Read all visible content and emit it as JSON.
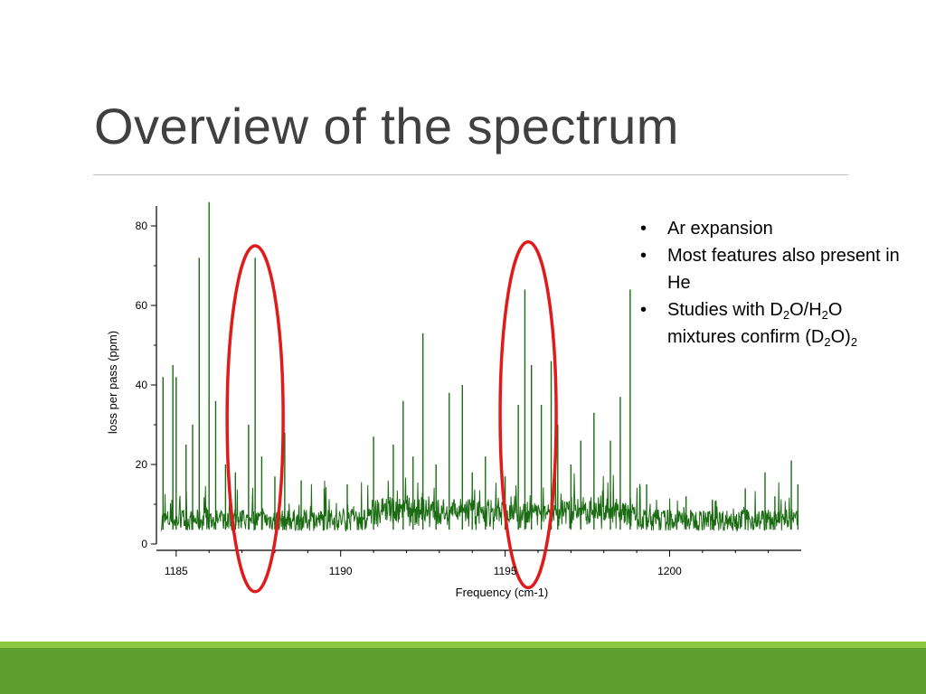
{
  "slide": {
    "title": "Overview of the spectrum"
  },
  "notes": {
    "b1": "Ar expansion",
    "b2": "Most features also present in He",
    "b3_pre": "Studies with D",
    "b3_sub1": "2",
    "b3_mid1": "O/H",
    "b3_sub2": "2",
    "b3_mid2": "O mixtures confirm (D",
    "b3_sub3": "2",
    "b3_mid3": "O)",
    "b3_sub4": "2"
  },
  "chart_data": {
    "type": "line",
    "xlabel": "Frequency (cm-1)",
    "ylabel": "loss per pass (ppm)",
    "xlim": [
      1184.4,
      1204
    ],
    "ylim": [
      0,
      85
    ],
    "x_ticks": [
      "1185",
      "1190",
      "1195",
      "1200"
    ],
    "y_ticks": [
      "0",
      "20",
      "40",
      "60",
      "80"
    ],
    "line_color": "#1a6b12",
    "highlight_color": "#e01b1b",
    "baseline_noise_ppm": 6,
    "peaks": [
      {
        "x": 1184.6,
        "y": 42
      },
      {
        "x": 1184.9,
        "y": 45
      },
      {
        "x": 1185.0,
        "y": 42
      },
      {
        "x": 1185.3,
        "y": 25
      },
      {
        "x": 1185.5,
        "y": 30
      },
      {
        "x": 1185.7,
        "y": 72
      },
      {
        "x": 1186.0,
        "y": 86
      },
      {
        "x": 1186.2,
        "y": 36
      },
      {
        "x": 1186.5,
        "y": 20
      },
      {
        "x": 1186.8,
        "y": 18
      },
      {
        "x": 1187.4,
        "y": 72
      },
      {
        "x": 1187.2,
        "y": 30
      },
      {
        "x": 1187.6,
        "y": 22
      },
      {
        "x": 1188.0,
        "y": 17
      },
      {
        "x": 1188.3,
        "y": 28
      },
      {
        "x": 1188.8,
        "y": 16
      },
      {
        "x": 1189.5,
        "y": 14
      },
      {
        "x": 1190.2,
        "y": 15
      },
      {
        "x": 1191.0,
        "y": 27
      },
      {
        "x": 1191.6,
        "y": 25
      },
      {
        "x": 1191.9,
        "y": 36
      },
      {
        "x": 1192.2,
        "y": 22
      },
      {
        "x": 1192.5,
        "y": 53
      },
      {
        "x": 1192.9,
        "y": 20
      },
      {
        "x": 1193.3,
        "y": 38
      },
      {
        "x": 1193.7,
        "y": 40
      },
      {
        "x": 1194.0,
        "y": 18
      },
      {
        "x": 1194.4,
        "y": 22
      },
      {
        "x": 1195.0,
        "y": 17
      },
      {
        "x": 1195.4,
        "y": 35
      },
      {
        "x": 1195.6,
        "y": 64
      },
      {
        "x": 1195.8,
        "y": 45
      },
      {
        "x": 1196.1,
        "y": 35
      },
      {
        "x": 1196.4,
        "y": 46
      },
      {
        "x": 1196.6,
        "y": 30
      },
      {
        "x": 1197.0,
        "y": 20
      },
      {
        "x": 1197.3,
        "y": 26
      },
      {
        "x": 1197.7,
        "y": 33
      },
      {
        "x": 1198.2,
        "y": 26
      },
      {
        "x": 1198.5,
        "y": 37
      },
      {
        "x": 1198.8,
        "y": 64
      },
      {
        "x": 1199.3,
        "y": 15
      },
      {
        "x": 1200.5,
        "y": 12
      },
      {
        "x": 1201.3,
        "y": 11
      },
      {
        "x": 1202.3,
        "y": 14
      },
      {
        "x": 1202.9,
        "y": 18
      },
      {
        "x": 1203.2,
        "y": 12
      },
      {
        "x": 1203.7,
        "y": 21
      },
      {
        "x": 1203.9,
        "y": 15
      }
    ],
    "highlight_regions": [
      {
        "center_x": 1187.4,
        "y_range": [
          -12,
          75
        ]
      },
      {
        "center_x": 1195.7,
        "y_range": [
          -11,
          76
        ]
      }
    ]
  }
}
